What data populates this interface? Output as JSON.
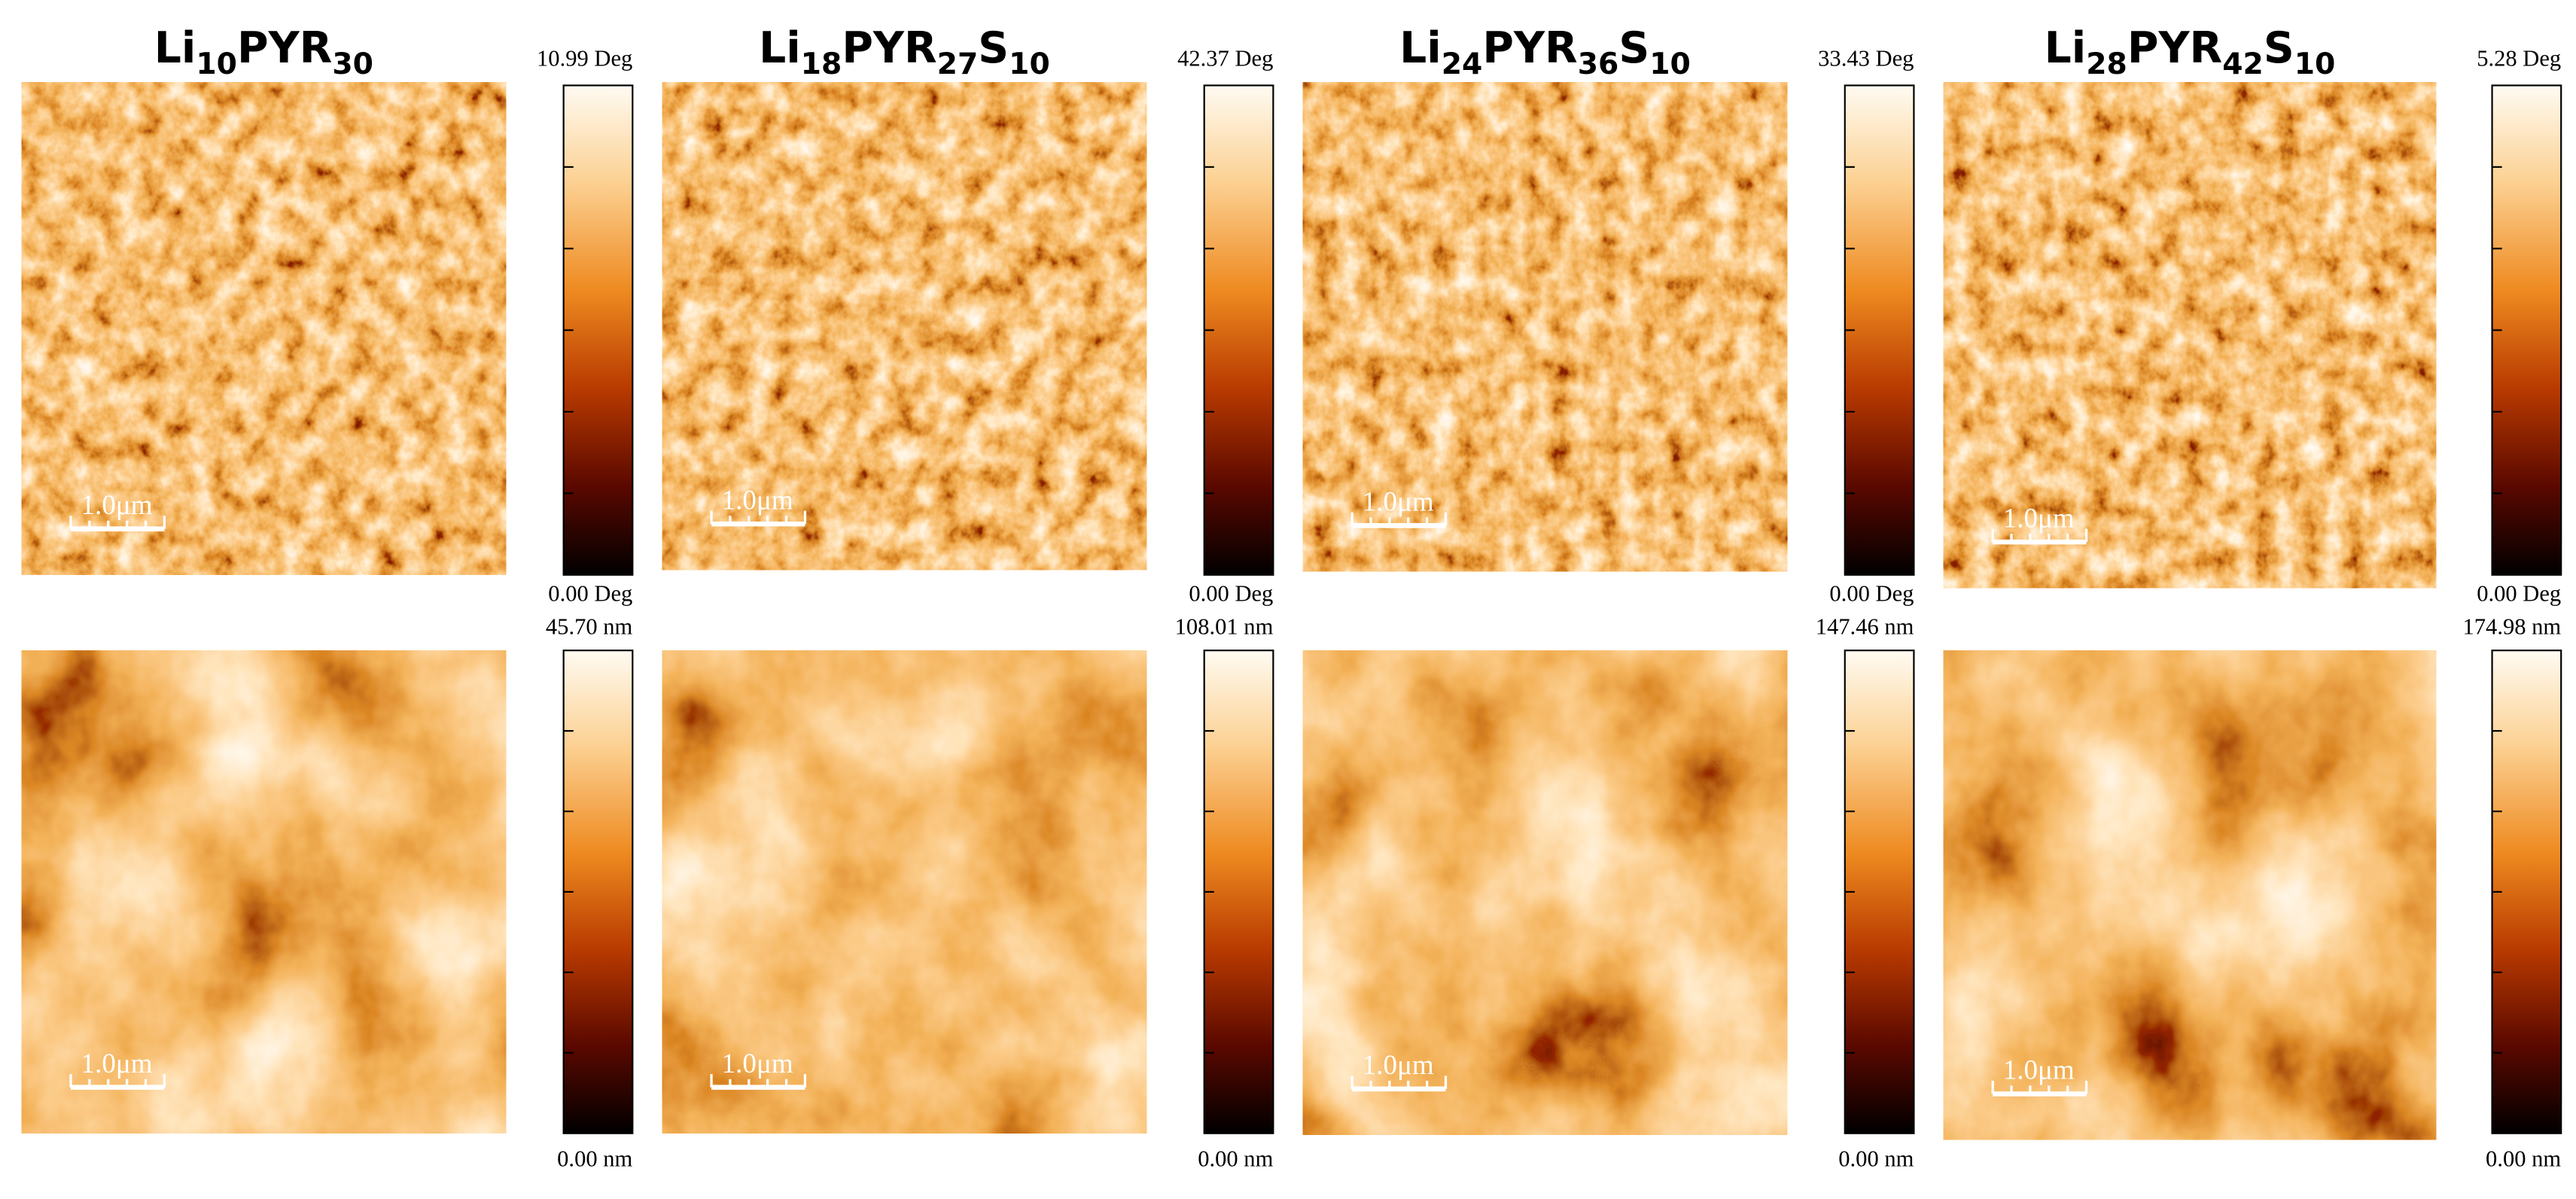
{
  "columns": [
    {
      "title": [
        {
          "text": "Li"
        },
        {
          "text": "10",
          "sub": true
        },
        {
          "text": "PYR"
        },
        {
          "text": "30",
          "sub": true
        }
      ],
      "phase": {
        "max": "10.99 Deg",
        "min": "0.00 Deg",
        "scale_bar": "1.0μm"
      },
      "height": {
        "max": "45.70 nm",
        "min": "0.00 nm",
        "scale_bar": "1.0μm"
      }
    },
    {
      "title": [
        {
          "text": "Li"
        },
        {
          "text": "18",
          "sub": true
        },
        {
          "text": "PYR"
        },
        {
          "text": "27",
          "sub": true
        },
        {
          "text": "S"
        },
        {
          "text": "10",
          "sub": true
        }
      ],
      "phase": {
        "max": "42.37 Deg",
        "min": "0.00 Deg",
        "scale_bar": "1.0μm"
      },
      "height": {
        "max": "108.01 nm",
        "min": "0.00 nm",
        "scale_bar": "1.0μm"
      }
    },
    {
      "title": [
        {
          "text": "Li"
        },
        {
          "text": "24",
          "sub": true
        },
        {
          "text": "PYR"
        },
        {
          "text": "36",
          "sub": true
        },
        {
          "text": "S"
        },
        {
          "text": "10",
          "sub": true
        }
      ],
      "phase": {
        "max": "33.43 Deg",
        "min": "0.00 Deg",
        "scale_bar": "1.0μm"
      },
      "height": {
        "max": "147.46 nm",
        "min": "0.00 nm",
        "scale_bar": "1.0μm"
      }
    },
    {
      "title": [
        {
          "text": "Li"
        },
        {
          "text": "28",
          "sub": true
        },
        {
          "text": "PYR"
        },
        {
          "text": "42",
          "sub": true
        },
        {
          "text": "S"
        },
        {
          "text": "10",
          "sub": true
        }
      ],
      "phase": {
        "max": "5.28 Deg",
        "min": "0.00 Deg",
        "scale_bar": "1.0μm"
      },
      "height": {
        "max": "174.98 nm",
        "min": "0.00 nm",
        "scale_bar": "1.0μm"
      }
    }
  ]
}
